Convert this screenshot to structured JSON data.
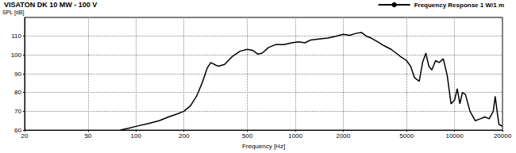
{
  "chart_data": {
    "type": "line",
    "title": "VISATON DK 10 MW - 100 V",
    "x_label": "Frequency [Hz]",
    "y_label": "SPL [dB]",
    "log": "x",
    "xlim": [
      20,
      20000
    ],
    "xticks": [
      20,
      50,
      100,
      200,
      500,
      1000,
      2000,
      5000,
      10000,
      20000
    ],
    "ylim": [
      60,
      120
    ],
    "yticks": [
      60,
      70,
      80,
      90,
      100,
      110
    ],
    "grid": true,
    "legend": "upper right",
    "x": [
      80,
      90,
      100,
      120,
      140,
      160,
      180,
      200,
      220,
      240,
      260,
      280,
      295,
      310,
      330,
      360,
      400,
      450,
      500,
      540,
      580,
      620,
      680,
      750,
      850,
      950,
      1050,
      1150,
      1250,
      1400,
      1600,
      1800,
      2000,
      2200,
      2400,
      2600,
      2800,
      3000,
      3300,
      3600,
      4000,
      4300,
      4600,
      5000,
      5300,
      5600,
      6000,
      6300,
      6600,
      6900,
      7200,
      7600,
      8000,
      8500,
      9000,
      9500,
      10000,
      10400,
      10800,
      11200,
      11700,
      12500,
      13500,
      14500,
      15500,
      16500,
      17500,
      18000,
      18500,
      19000,
      20000
    ],
    "series": [
      {
        "name": "Frequency Response 1 W/1 m",
        "color": "#000000",
        "values": [
          60,
          61,
          62,
          63.5,
          65,
          67,
          68.5,
          70,
          73,
          78,
          85,
          93,
          96,
          95,
          94,
          95,
          99,
          102,
          103,
          102.5,
          100.5,
          101,
          104,
          105.5,
          105.5,
          106.5,
          107,
          106.5,
          108,
          108.5,
          109,
          110,
          111,
          110.5,
          111.5,
          112,
          110,
          109,
          107,
          105,
          103,
          101,
          99,
          97,
          94,
          88,
          86,
          96,
          101,
          94,
          92,
          97,
          96,
          98,
          89,
          74,
          76,
          82,
          74,
          80,
          79,
          70,
          65,
          66,
          67,
          66,
          70,
          78,
          70,
          63,
          62
        ]
      }
    ]
  }
}
